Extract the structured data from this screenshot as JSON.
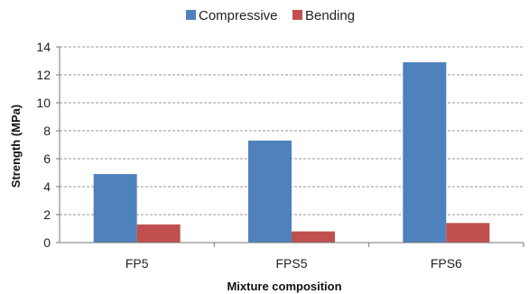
{
  "chart_data": {
    "type": "bar",
    "categories": [
      "FP5",
      "FPS5",
      "FPS6"
    ],
    "series": [
      {
        "name": "Compressive",
        "values": [
          4.9,
          7.3,
          12.9
        ]
      },
      {
        "name": "Bending",
        "values": [
          1.3,
          0.8,
          1.4
        ]
      }
    ],
    "xlabel": "Mixture composition",
    "ylabel": "Strength (MPa)",
    "ylim": [
      0,
      14
    ],
    "yticks": [
      "0",
      "2",
      "4",
      "6",
      "8",
      "10",
      "12",
      "14"
    ],
    "grid": true,
    "legend_position": "top-center"
  },
  "colors": {
    "compressive": "#4f81bd",
    "bending": "#c0504d"
  }
}
